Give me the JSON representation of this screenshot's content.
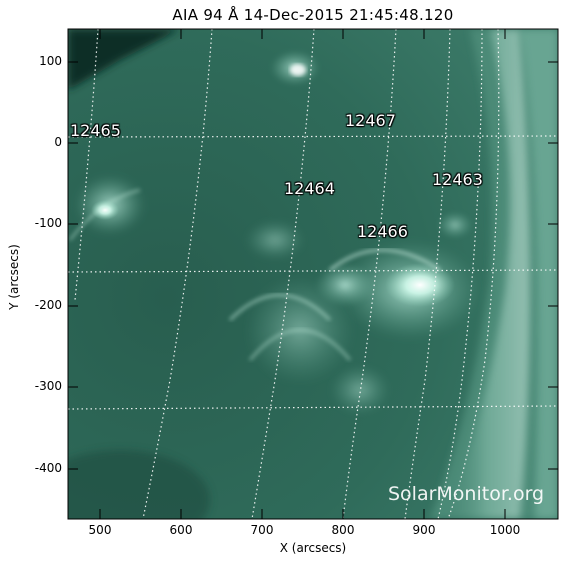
{
  "title": "AIA 94 Å 14-Dec-2015 21:45:48.120",
  "xlabel": "X (arcsecs)",
  "ylabel": "Y (arcsecs)",
  "x_ticks": [
    "500",
    "600",
    "700",
    "800",
    "900",
    "1000"
  ],
  "y_ticks": [
    "100",
    "0",
    "-100",
    "-200",
    "-300",
    "-400"
  ],
  "active_regions": [
    "12465",
    "12467",
    "12464",
    "12463",
    "12466"
  ],
  "watermark": "SolarMonitor.org",
  "colors": {
    "background_dark": "#0b2a22",
    "disk": "#2f6b5a",
    "bright": "#e9fff8",
    "grid": "#ffffff"
  },
  "chart_data": {
    "type": "image",
    "xlim": [
      445,
      1050
    ],
    "ylim": [
      -460,
      140
    ],
    "grid": true,
    "active_region_positions": [
      {
        "id": "12465",
        "x": 485,
        "y": 10
      },
      {
        "id": "12467",
        "x": 815,
        "y": 25
      },
      {
        "id": "12464",
        "x": 745,
        "y": -45
      },
      {
        "id": "12463",
        "x": 935,
        "y": -35
      },
      {
        "id": "12466",
        "x": 835,
        "y": -105
      }
    ]
  }
}
